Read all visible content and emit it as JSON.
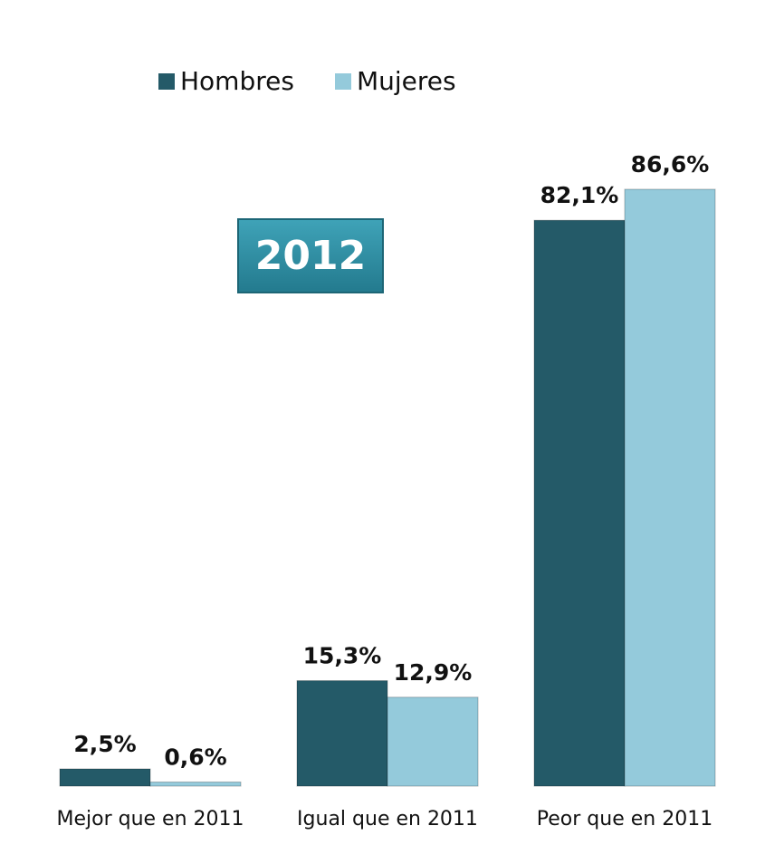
{
  "chart_data": {
    "type": "bar",
    "annotation": "2012",
    "categories": [
      "Mejor que en 2011",
      "Igual que en 2011",
      "Peor que en 2011"
    ],
    "series": [
      {
        "name": "Hombres",
        "color": "#245a68",
        "values": [
          2.5,
          15.3,
          82.1
        ],
        "value_labels": [
          "2,5%",
          "15,3%",
          "82,1%"
        ]
      },
      {
        "name": "Mujeres",
        "color": "#94cadb",
        "values": [
          0.6,
          12.9,
          86.6
        ],
        "value_labels": [
          "0,6%",
          "12,9%",
          "86,6%"
        ]
      }
    ],
    "ylim": [
      0,
      100
    ],
    "legend": "top"
  }
}
